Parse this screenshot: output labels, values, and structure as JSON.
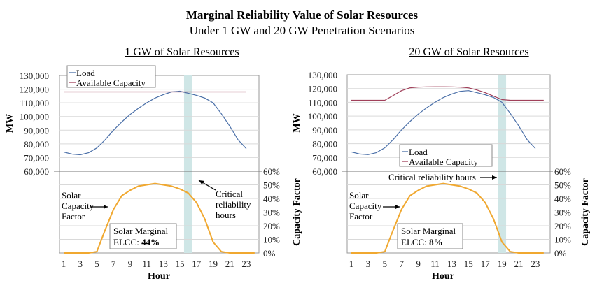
{
  "header": {
    "title": "Marginal Reliability Value of Solar Resources",
    "subtitle": "Under 1 GW and 20 GW Penetration Scenarios"
  },
  "colors": {
    "load": "#4a6fa8",
    "available_capacity": "#a0405a",
    "solar": "#f0a830",
    "critical_band": "#cfe6e6",
    "grid": "#d9d9d9"
  },
  "chart_data": [
    {
      "type": "line",
      "panel_title": "1 GW of Solar Resources",
      "xlabel": "Hour",
      "ylabel": "MW",
      "y2label": "Capacity Factor",
      "x": [
        1,
        2,
        3,
        4,
        5,
        6,
        7,
        8,
        9,
        10,
        11,
        12,
        13,
        14,
        15,
        16,
        17,
        18,
        19,
        20,
        21,
        22,
        23,
        24
      ],
      "x_ticks": [
        "1",
        "3",
        "5",
        "7",
        "9",
        "11",
        "13",
        "15",
        "17",
        "19",
        "21",
        "23"
      ],
      "y_ticks": [
        "130,000",
        "120,000",
        "110,000",
        "100,000",
        "90,000",
        "80,000",
        "70,000",
        "60,000"
      ],
      "ylim": [
        60000,
        130000
      ],
      "y2_ticks": [
        "60%",
        "50%",
        "40%",
        "30%",
        "20%",
        "10%",
        "0%"
      ],
      "y2lim": [
        0,
        0.6
      ],
      "grid": true,
      "legend": {
        "position": "top-left",
        "entries": [
          "Load",
          "Available Capacity"
        ]
      },
      "critical_hours": [
        15.5,
        16.5
      ],
      "series": [
        {
          "name": "Load",
          "axis": "top",
          "values": [
            74000,
            72500,
            72000,
            73500,
            77000,
            83000,
            90000,
            96000,
            101500,
            106000,
            110000,
            113500,
            116000,
            118000,
            118500,
            117000,
            115500,
            113500,
            110000,
            102000,
            93000,
            83000,
            76500,
            null
          ]
        },
        {
          "name": "Available Capacity",
          "axis": "top",
          "values": [
            118000,
            118000,
            118000,
            118000,
            118000,
            118000,
            118000,
            118000,
            118000,
            118000,
            118000,
            118000,
            118000,
            118000,
            118000,
            118000,
            118000,
            118000,
            118000,
            118000,
            118000,
            118000,
            118000,
            null
          ]
        },
        {
          "name": "Solar Capacity Factor",
          "axis": "bottom",
          "values": [
            0,
            0,
            0,
            0,
            0.01,
            0.17,
            0.32,
            0.42,
            0.46,
            0.49,
            0.5,
            0.51,
            0.5,
            0.49,
            0.47,
            0.44,
            0.37,
            0.25,
            0.08,
            0.01,
            0,
            0,
            0,
            0
          ]
        }
      ],
      "annotations": {
        "solar_label": [
          "Solar",
          "Capacity",
          "Factor"
        ],
        "critical_label": [
          "Critical",
          "reliability",
          "hours"
        ],
        "elcc_line1": "Solar Marginal",
        "elcc_prefix": "ELCC: ",
        "elcc_value": "44%"
      }
    },
    {
      "type": "line",
      "panel_title": "20 GW of Solar Resources",
      "xlabel": "Hour",
      "ylabel": "MW",
      "y2label": "Capacity Factor",
      "x": [
        1,
        2,
        3,
        4,
        5,
        6,
        7,
        8,
        9,
        10,
        11,
        12,
        13,
        14,
        15,
        16,
        17,
        18,
        19,
        20,
        21,
        22,
        23,
        24
      ],
      "x_ticks": [
        "1",
        "3",
        "5",
        "7",
        "9",
        "11",
        "13",
        "15",
        "17",
        "19",
        "21",
        "23"
      ],
      "y_ticks": [
        "130,000",
        "120,000",
        "110,000",
        "100,000",
        "90,000",
        "80,000",
        "70,000",
        "60,000"
      ],
      "ylim": [
        60000,
        130000
      ],
      "y2_ticks": [
        "60%",
        "50%",
        "40%",
        "30%",
        "20%",
        "10%",
        "0%"
      ],
      "y2lim": [
        0,
        0.6
      ],
      "grid": true,
      "legend": {
        "position": "bottom-center",
        "entries": [
          "Load",
          "Available Capacity"
        ]
      },
      "critical_hours": [
        18.5,
        19.5
      ],
      "series": [
        {
          "name": "Load",
          "axis": "top",
          "values": [
            74000,
            72500,
            72000,
            73500,
            77000,
            83000,
            90000,
            96000,
            101500,
            106000,
            110000,
            113500,
            116000,
            118000,
            118500,
            117000,
            115500,
            113500,
            110000,
            102000,
            93000,
            83000,
            76500,
            null
          ]
        },
        {
          "name": "Available Capacity",
          "axis": "top",
          "values": [
            111500,
            111500,
            111500,
            111500,
            111500,
            115000,
            118500,
            120500,
            121000,
            121200,
            121300,
            121300,
            121200,
            121000,
            120500,
            119000,
            117000,
            114500,
            112000,
            111500,
            111500,
            111500,
            111500,
            111500
          ]
        },
        {
          "name": "Solar Capacity Factor",
          "axis": "bottom",
          "values": [
            0,
            0,
            0,
            0,
            0.01,
            0.17,
            0.32,
            0.42,
            0.46,
            0.49,
            0.5,
            0.51,
            0.5,
            0.49,
            0.47,
            0.44,
            0.37,
            0.25,
            0.08,
            0.01,
            0,
            0,
            0,
            0
          ]
        }
      ],
      "annotations": {
        "solar_label": [
          "Solar",
          "Capacity",
          "Factor"
        ],
        "critical_label": [
          "Critical reliability hours"
        ],
        "elcc_line1": "Solar Marginal",
        "elcc_prefix": "ELCC: ",
        "elcc_value": "8%"
      }
    }
  ]
}
